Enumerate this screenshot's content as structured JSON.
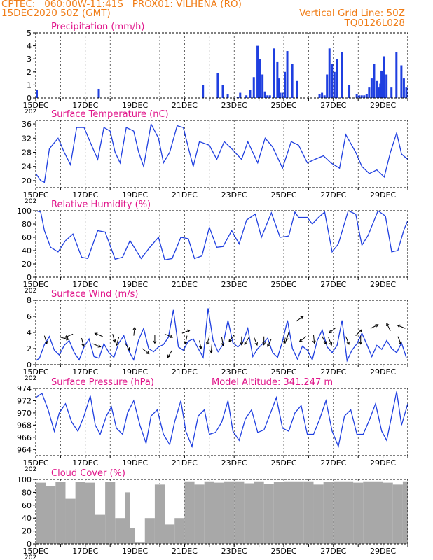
{
  "header": {
    "line1": "CPTEC:   060:00W-11:41S   PROX01: VILHENA (RO)",
    "line2": "15DEC2020 50Z (GMT)",
    "grid_note": "Vertical Grid Line: 50Z",
    "code": "TQ0126L028"
  },
  "colors": {
    "header": "#f07c16",
    "title": "#e0158a",
    "series": "#1f3fe0",
    "arrow": "#000000",
    "cloud": "#a8a8a8"
  },
  "x_tick_labels": [
    "15DEC",
    "17DEC",
    "19DEC",
    "21DEC",
    "23DEC",
    "25DEC",
    "27DEC",
    "29DEC"
  ],
  "year_fragment": "202",
  "chart_data": [
    {
      "type": "bar",
      "title": "Precipitation (mm/h)",
      "ylim": [
        0,
        5
      ],
      "yticks": [
        "0",
        "1",
        "2",
        "3",
        "4",
        "5"
      ],
      "x": [
        0.0,
        2.5,
        6.7,
        7.3,
        7.5,
        7.7,
        8.1,
        8.2,
        8.45,
        8.6,
        8.75,
        8.9,
        9.0,
        9.1,
        9.2,
        9.3,
        9.4,
        9.55,
        9.7,
        9.75,
        9.8,
        9.9,
        10.0,
        10.1,
        10.3,
        10.5,
        11.4,
        11.5,
        11.6,
        11.7,
        11.8,
        11.9,
        12.0,
        12.1,
        12.3,
        12.6,
        12.9,
        13.0,
        13.1,
        13.2,
        13.3,
        13.4,
        13.5,
        13.6,
        13.7,
        13.8,
        13.85,
        13.9,
        14.0,
        14.1,
        14.3,
        14.5,
        14.7,
        14.8,
        14.9
      ],
      "values": [
        0.6,
        0.7,
        1.0,
        1.9,
        1.0,
        0.3,
        0.1,
        0.4,
        0.2,
        0.6,
        1.6,
        4.0,
        3.0,
        1.8,
        0.5,
        0.2,
        0.2,
        3.8,
        2.8,
        1.5,
        0.4,
        0.4,
        2.0,
        3.6,
        2.6,
        1.3,
        0.3,
        0.4,
        0.2,
        1.8,
        3.8,
        2.6,
        2.0,
        3.0,
        3.5,
        1.0,
        0.3,
        0.2,
        0.2,
        0.2,
        0.3,
        0.8,
        1.5,
        2.6,
        1.3,
        0.8,
        1.1,
        2.1,
        3.2,
        1.8,
        0.8,
        3.5,
        2.5,
        1.5,
        0.8
      ]
    },
    {
      "type": "line",
      "title": "Surface Temperature (nC)",
      "ylim": [
        18,
        37
      ],
      "yticks": [
        "20",
        "24",
        "28",
        "32",
        "36"
      ],
      "x": [
        0.0,
        0.2,
        0.35,
        0.55,
        0.9,
        1.15,
        1.4,
        1.65,
        1.95,
        2.25,
        2.5,
        2.75,
        3.0,
        3.2,
        3.4,
        3.65,
        3.95,
        4.15,
        4.35,
        4.65,
        4.95,
        5.15,
        5.4,
        5.7,
        5.95,
        6.2,
        6.35,
        6.6,
        7.0,
        7.3,
        7.6,
        7.9,
        8.3,
        8.55,
        8.95,
        9.25,
        9.55,
        9.95,
        10.3,
        10.6,
        10.95,
        11.25,
        11.6,
        11.9,
        12.25,
        12.5,
        12.9,
        13.15,
        13.45,
        13.75,
        14.05,
        14.3,
        14.55,
        14.75,
        15.0
      ],
      "values": [
        22,
        20,
        19.5,
        29,
        32,
        28,
        24.5,
        35,
        35,
        30,
        26,
        35,
        34,
        28,
        25,
        35,
        34,
        28,
        24,
        36,
        32,
        25,
        28,
        35.5,
        35,
        28,
        24,
        31,
        30,
        26,
        31,
        29,
        26,
        31,
        25,
        32,
        29.5,
        23.5,
        31,
        30,
        25,
        26,
        27,
        25,
        23.5,
        33,
        28,
        24,
        22,
        23,
        21,
        28,
        33.5,
        27.5,
        26
      ]
    },
    {
      "type": "line",
      "title": "Relative Humidity (%)",
      "ylim": [
        0,
        100
      ],
      "yticks": [
        "0",
        "20",
        "40",
        "60",
        "80",
        "100"
      ],
      "x": [
        0.0,
        0.2,
        0.35,
        0.6,
        0.9,
        1.2,
        1.5,
        1.85,
        2.1,
        2.5,
        2.8,
        3.2,
        3.5,
        3.8,
        4.25,
        4.6,
        4.95,
        5.2,
        5.5,
        5.85,
        6.15,
        6.4,
        6.7,
        7.0,
        7.3,
        7.55,
        7.9,
        8.2,
        8.5,
        8.85,
        9.1,
        9.5,
        9.85,
        10.2,
        10.45,
        10.6,
        10.95,
        11.15,
        11.4,
        11.65,
        11.95,
        12.2,
        12.6,
        12.9,
        13.15,
        13.4,
        13.8,
        14.1,
        14.35,
        14.6,
        14.85,
        15.0
      ],
      "values": [
        100,
        98,
        70,
        45,
        38,
        55,
        65,
        30,
        28,
        70,
        68,
        27,
        30,
        55,
        28,
        45,
        60,
        26,
        28,
        60,
        58,
        28,
        32,
        75,
        45,
        46,
        70,
        50,
        86,
        95,
        60,
        97,
        60,
        62,
        98,
        90,
        90,
        80,
        90,
        98,
        38,
        50,
        100,
        95,
        48,
        63,
        100,
        92,
        38,
        40,
        72,
        85
      ]
    },
    {
      "type": "line",
      "title": "Surface Wind (m/s)",
      "ylim": [
        0,
        8
      ],
      "yticks": [
        "0",
        "2",
        "4",
        "6",
        "8"
      ],
      "x": [
        0.0,
        0.15,
        0.35,
        0.55,
        0.75,
        0.95,
        1.15,
        1.35,
        1.55,
        1.75,
        1.95,
        2.15,
        2.35,
        2.55,
        2.75,
        2.95,
        3.15,
        3.35,
        3.55,
        3.75,
        3.95,
        4.15,
        4.35,
        4.55,
        4.75,
        4.95,
        5.15,
        5.35,
        5.55,
        5.75,
        5.95,
        6.15,
        6.35,
        6.55,
        6.75,
        6.95,
        7.15,
        7.35,
        7.55,
        7.75,
        7.95,
        8.15,
        8.35,
        8.55,
        8.75,
        8.95,
        9.15,
        9.35,
        9.55,
        9.75,
        9.95,
        10.15,
        10.35,
        10.55,
        10.75,
        10.95,
        11.15,
        11.35,
        11.55,
        11.75,
        11.95,
        12.15,
        12.35,
        12.55,
        12.75,
        12.95,
        13.15,
        13.35,
        13.55,
        13.75,
        13.95,
        14.15,
        14.35,
        14.55,
        14.75,
        14.95
      ],
      "values": [
        0.5,
        0.8,
        2.5,
        3.5,
        1.8,
        1.2,
        2.4,
        3.0,
        1.5,
        0.6,
        2.2,
        3.2,
        1.0,
        0.8,
        2.6,
        1.5,
        0.9,
        2.7,
        3.6,
        1.7,
        0.6,
        3.1,
        4.5,
        2.0,
        1.6,
        2.2,
        2.5,
        3.4,
        6.8,
        2.2,
        1.8,
        2.9,
        3.2,
        2.0,
        0.9,
        7.0,
        3.0,
        1.6,
        2.5,
        5.5,
        2.7,
        2.2,
        2.8,
        4.5,
        1.0,
        2.0,
        2.6,
        3.3,
        1.5,
        0.9,
        2.9,
        5.5,
        2.0,
        0.7,
        2.3,
        1.8,
        0.6,
        3.0,
        4.3,
        2.2,
        1.5,
        2.4,
        5.5,
        0.5,
        1.8,
        2.6,
        3.9,
        2.5,
        1.0,
        2.4,
        1.9,
        3.0,
        2.0,
        1.5,
        2.7,
        0.8
      ]
    },
    {
      "type": "line",
      "title": "Surface Pressure (hPa)",
      "ylim": [
        963,
        974
      ],
      "yticks": [
        "964",
        "966",
        "968",
        "970",
        "972",
        "974"
      ],
      "x": [
        0.0,
        0.25,
        0.5,
        0.75,
        0.95,
        1.2,
        1.45,
        1.7,
        1.95,
        2.2,
        2.4,
        2.6,
        2.85,
        3.05,
        3.25,
        3.5,
        3.7,
        3.95,
        4.2,
        4.45,
        4.65,
        4.9,
        5.15,
        5.4,
        5.6,
        5.85,
        6.05,
        6.3,
        6.55,
        6.8,
        7.0,
        7.25,
        7.5,
        7.75,
        7.95,
        8.2,
        8.45,
        8.7,
        8.95,
        9.2,
        9.45,
        9.7,
        9.95,
        10.2,
        10.45,
        10.7,
        10.95,
        11.2,
        11.45,
        11.7,
        11.95,
        12.2,
        12.45,
        12.7,
        12.95,
        13.2,
        13.45,
        13.7,
        13.95,
        14.15,
        14.35,
        14.55,
        14.75,
        15.0
      ],
      "values": [
        972.5,
        973.2,
        970.5,
        967.0,
        970.0,
        971.5,
        968.5,
        967.0,
        969.5,
        972.8,
        968.0,
        966.5,
        969.5,
        971.0,
        967.5,
        966.5,
        970.0,
        972.0,
        968.0,
        965.0,
        969.5,
        970.5,
        966.5,
        964.8,
        968.5,
        972.0,
        967.0,
        964.5,
        969.5,
        970.5,
        966.5,
        966.8,
        968.5,
        972.0,
        967.0,
        965.5,
        969.0,
        970.5,
        966.8,
        967.2,
        969.8,
        972.5,
        967.5,
        967.0,
        970.0,
        971.2,
        966.5,
        966.5,
        969.0,
        972.0,
        967.0,
        964.5,
        969.5,
        970.5,
        966.5,
        966.5,
        968.8,
        971.5,
        967.0,
        965.5,
        969.5,
        973.5,
        968.0,
        971.5
      ]
    },
    {
      "type": "bar",
      "title": "Cloud Cover (%)",
      "ylim": [
        0,
        100
      ],
      "yticks": [
        "0",
        "20",
        "40",
        "60",
        "80",
        "100"
      ],
      "x": [
        0.0,
        0.4,
        0.8,
        1.2,
        1.6,
        2.0,
        2.4,
        2.8,
        3.2,
        3.6,
        3.8,
        4.0,
        4.2,
        4.4,
        4.8,
        5.2,
        5.6,
        6.0,
        6.4,
        6.8,
        7.2,
        7.6,
        8.0,
        8.4,
        8.8,
        9.2,
        9.6,
        10.0,
        10.4,
        10.8,
        11.2,
        11.6,
        12.0,
        12.4,
        12.8,
        13.2,
        13.6,
        14.0,
        14.4,
        14.8
      ],
      "values": [
        95,
        90,
        96,
        70,
        96,
        95,
        45,
        96,
        40,
        80,
        25,
        2,
        2,
        40,
        92,
        30,
        40,
        97,
        92,
        97,
        95,
        97,
        97,
        94,
        97,
        93,
        96,
        97,
        97,
        97,
        92,
        96,
        97,
        97,
        95,
        97,
        97,
        95,
        92,
        97
      ]
    }
  ],
  "wind_barbs": {
    "x": [
      0.35,
      1.0,
      1.5,
      1.85,
      2.3,
      2.7,
      3.1,
      3.35,
      3.6,
      3.95,
      4.3,
      4.8,
      5.2,
      5.5,
      5.9,
      6.1,
      6.6,
      7.0,
      7.1,
      7.5,
      8.0,
      8.3,
      8.6,
      8.8,
      9.2,
      9.5,
      10.0,
      10.2,
      10.5,
      10.9,
      11.2,
      11.55,
      11.8,
      12.1,
      12.5,
      12.9,
      13.1,
      13.5,
      14.3,
      14.6,
      14.9
    ],
    "u": [
      0.3,
      1.5,
      -1.2,
      0.2,
      1.0,
      -1.5,
      0.3,
      -0.3,
      0.6,
      0.1,
      1.0,
      0.0,
      1.2,
      -0.6,
      1.0,
      -0.2,
      0.2,
      -0.3,
      -0.1,
      0.2,
      -0.6,
      0.0,
      -0.6,
      0.4,
      0.0,
      -0.5,
      0.2,
      -0.3,
      1.2,
      -1.0,
      0.1,
      0.5,
      0.4,
      -1.0,
      0.4,
      0.6,
      0.0,
      1.0,
      -0.5,
      0.5,
      -1.2
    ],
    "v": [
      -1.0,
      -0.4,
      -0.5,
      -0.8,
      -0.4,
      0.6,
      -1.1,
      -1.0,
      -1.0,
      0.8,
      -0.8,
      -1.2,
      -0.5,
      -1.0,
      0.4,
      -1.0,
      -1.0,
      -1.0,
      -1.2,
      -1.2,
      -0.8,
      -1.0,
      -1.0,
      -1.0,
      -1.2,
      -1.0,
      -1.2,
      -1.0,
      0.8,
      -0.8,
      -1.0,
      -1.0,
      -1.0,
      -0.8,
      -1.0,
      0.6,
      -1.2,
      0.5,
      1.0,
      -1.2,
      0.5
    ]
  },
  "wind_barbs_level": [
    3.6,
    3.4,
    3.8,
    3.3,
    2.6,
    3.5,
    3.8,
    3.4,
    2.7,
    3.6,
    2.0,
    3.7,
    3.8,
    1.8,
    3.9,
    3.6,
    3.0,
    3.5,
    2.5,
    3.4,
    3.7,
    3.5,
    3.4,
    3.4,
    3.5,
    3.2,
    3.7,
    4.0,
    5.4,
    3.5,
    3.7,
    3.5,
    3.4,
    4.6,
    3.5,
    3.6,
    3.6,
    4.5,
    4.2,
    3.5,
    4.5
  ],
  "pressure_note": "Model Altitude: 341.247 m"
}
